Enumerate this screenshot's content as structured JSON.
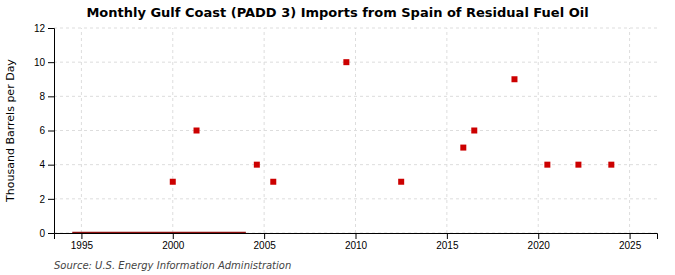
{
  "chart_data": {
    "type": "scatter",
    "title": "Monthly Gulf Coast (PADD 3) Imports from Spain of Residual Fuel Oil",
    "ylabel": "Thousand Barrels per Day",
    "annotations": [
      "Source: U.S. Energy Information Administration"
    ],
    "xlim": [
      1993.5,
      2026.5
    ],
    "ylim": [
      0,
      12
    ],
    "xticks": [
      1995,
      2000,
      2005,
      2010,
      2015,
      2020,
      2025
    ],
    "yticks": [
      0,
      2,
      4,
      6,
      8,
      10,
      12
    ],
    "grid": true,
    "series": [
      {
        "type": "line",
        "color": "#8B1010",
        "line_style": "solid",
        "x": [
          1994.5,
          2004.0
        ],
        "values": [
          0,
          0
        ]
      },
      {
        "type": "scatter",
        "color": "#CC0000",
        "marker": "square",
        "x": [
          2000.0,
          2001.3,
          2004.6,
          2005.5,
          2009.5,
          2012.5,
          2015.9,
          2016.5,
          2018.7,
          2020.5,
          2022.2,
          2024.0
        ],
        "values": [
          3,
          6,
          4,
          3,
          10,
          3,
          5,
          6,
          9,
          4,
          4,
          4
        ]
      }
    ]
  }
}
